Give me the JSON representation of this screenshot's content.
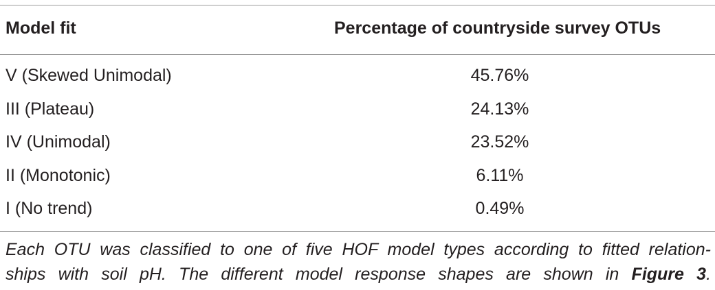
{
  "table": {
    "columns": [
      "Model fit",
      "Percentage of countryside survey OTUs"
    ],
    "rows": [
      {
        "model_fit": "V (Skewed Unimodal)",
        "percentage": "45.76%"
      },
      {
        "model_fit": "III (Plateau)",
        "percentage": "24.13%"
      },
      {
        "model_fit": "IV (Unimodal)",
        "percentage": "23.52%"
      },
      {
        "model_fit": "II (Monotonic)",
        "percentage": "6.11%"
      },
      {
        "model_fit": "I (No trend)",
        "percentage": "0.49%"
      }
    ]
  },
  "footnote": {
    "line1": "Each OTU was classified to one of five HOF model types according to fitted relation-",
    "line2_text": "ships with soil pH. The different model response shapes are shown in ",
    "figure_ref": "Figure 3",
    "line2_end": "."
  }
}
